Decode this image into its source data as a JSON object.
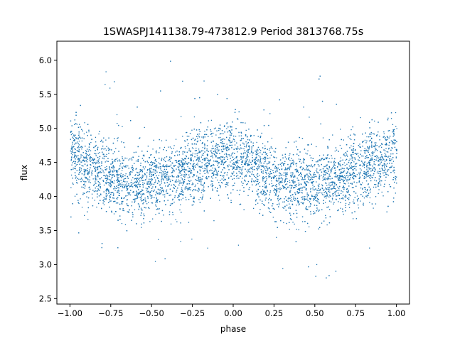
{
  "chart_data": {
    "type": "scatter",
    "title": "1SWASPJ141138.79-473812.9 Period 3813768.75s",
    "xlabel": "phase",
    "ylabel": "flux",
    "xlim": [
      -1.08,
      1.08
    ],
    "ylim": [
      2.42,
      6.28
    ],
    "x_ticks": [
      -1.0,
      -0.75,
      -0.5,
      -0.25,
      0.0,
      0.25,
      0.5,
      0.75,
      1.0
    ],
    "x_tick_labels": [
      "−1.00",
      "−0.75",
      "−0.50",
      "−0.25",
      "0.00",
      "0.25",
      "0.50",
      "0.75",
      "1.00"
    ],
    "y_ticks": [
      2.5,
      3.0,
      3.5,
      4.0,
      4.5,
      5.0,
      5.5,
      6.0
    ],
    "y_tick_labels": [
      "2.5",
      "3.0",
      "3.5",
      "4.0",
      "4.5",
      "5.0",
      "5.5",
      "6.0"
    ],
    "grid": false,
    "legend": "none",
    "series": [
      {
        "color": "#1f77b4",
        "marker": "point",
        "x": [
          -1.0,
          -0.95,
          -0.9,
          -0.85,
          -0.8,
          -0.75,
          -0.7,
          -0.65,
          -0.6,
          -0.55,
          -0.5,
          -0.45,
          -0.4,
          -0.35,
          -0.3,
          -0.25,
          -0.2,
          -0.15,
          -0.1,
          -0.05,
          0.0,
          0.05,
          0.1,
          0.15,
          0.2,
          0.25,
          0.3,
          0.35,
          0.4,
          0.45,
          0.5,
          0.55,
          0.6,
          0.65,
          0.7,
          0.75,
          0.8,
          0.85,
          0.9,
          0.95,
          1.0
        ],
        "y": [
          4.65,
          4.55,
          4.45,
          4.38,
          4.32,
          4.28,
          4.22,
          4.18,
          4.2,
          4.18,
          4.2,
          4.22,
          4.25,
          4.3,
          4.35,
          4.4,
          4.45,
          4.5,
          4.55,
          4.6,
          4.62,
          4.55,
          4.48,
          4.4,
          4.33,
          4.28,
          4.25,
          4.22,
          4.2,
          4.18,
          4.18,
          4.2,
          4.24,
          4.28,
          4.33,
          4.38,
          4.43,
          4.48,
          4.53,
          4.58,
          4.65
        ],
        "spread": [
          0.45,
          0.45,
          0.42,
          0.4,
          0.4,
          0.4,
          0.42,
          0.42,
          0.42,
          0.42,
          0.42,
          0.42,
          0.42,
          0.42,
          0.42,
          0.42,
          0.42,
          0.4,
          0.4,
          0.42,
          0.45,
          0.42,
          0.42,
          0.42,
          0.42,
          0.42,
          0.42,
          0.42,
          0.42,
          0.42,
          0.42,
          0.42,
          0.42,
          0.42,
          0.42,
          0.42,
          0.42,
          0.42,
          0.42,
          0.45,
          0.45
        ]
      }
    ]
  }
}
